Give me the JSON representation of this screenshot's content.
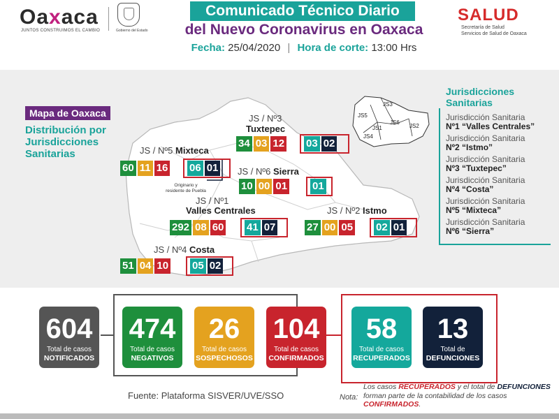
{
  "header": {
    "logo_text_1": "Oa",
    "logo_text_x": "x",
    "logo_text_2": "aca",
    "logo_tagline": "JUNTOS CONSTRUIMOS EL CAMBIO",
    "seal_caption": "Gobierno del Estado",
    "title_line1": "Comunicado Técnico Diario",
    "title_line2": "del Nuevo Coronavirus en Oaxaca",
    "fecha_label": "Fecha:",
    "fecha_value": "25/04/2020",
    "separator": "|",
    "hora_label": "Hora de corte:",
    "hora_value": "13:00 Hrs",
    "salud_logo": "SALUD",
    "salud_sub1": "Secretaría de Salud",
    "salud_sub2": "Servicios de Salud de Oaxaca"
  },
  "map": {
    "tag": "Mapa de Oaxaca",
    "subtitle": "Distribución por Jurisdicciones Sanitarias",
    "puebla_note": "Originario y residente de Puebla",
    "inset_labels": [
      "JS5",
      "JS3",
      "JS6",
      "JS1",
      "JS2",
      "JS4"
    ]
  },
  "jurisdictions": {
    "tuxtepec": {
      "prefix": "JS / Nº3",
      "name": "Tuxtepec",
      "negativos": "34",
      "sospechosos": "03",
      "confirmados": "12",
      "recuperados": "03",
      "defunciones": "02"
    },
    "mixteca": {
      "prefix": "JS / Nº5",
      "name": "Mixteca",
      "negativos": "60",
      "sospechosos": "11",
      "confirmados": "16",
      "recuperados": "06",
      "defunciones": "01"
    },
    "sierra": {
      "prefix": "JS / Nº6",
      "name": "Sierra",
      "negativos": "10",
      "sospechosos": "00",
      "confirmados": "01",
      "recuperados": "01"
    },
    "valles": {
      "prefix": "JS / Nº1",
      "name": "Valles Centrales",
      "negativos": "292",
      "sospechosos": "08",
      "confirmados": "60",
      "recuperados": "41",
      "defunciones": "07"
    },
    "istmo": {
      "prefix": "JS / Nº2",
      "name": "Istmo",
      "negativos": "27",
      "sospechosos": "00",
      "confirmados": "05",
      "recuperados": "02",
      "defunciones": "01"
    },
    "costa": {
      "prefix": "JS / Nº4",
      "name": "Costa",
      "negativos": "51",
      "sospechosos": "04",
      "confirmados": "10",
      "recuperados": "05",
      "defunciones": "02"
    }
  },
  "legend": {
    "title": "Jurisdicciones Sanitarias",
    "items": [
      {
        "prefix": "Jurisdicción Sanitaria",
        "name": "Nº1 “Valles Centrales”"
      },
      {
        "prefix": "Jurisdicción Sanitaria",
        "name": "Nº2 “Istmo”"
      },
      {
        "prefix": "Jurisdicción Sanitaria",
        "name": "Nº3 “Tuxtepec”"
      },
      {
        "prefix": "Jurisdicción Sanitaria",
        "name": "Nº4 “Costa”"
      },
      {
        "prefix": "Jurisdicción Sanitaria",
        "name": "Nº5 “Mixteca”"
      },
      {
        "prefix": "Jurisdicción Sanitaria",
        "name": "Nº6 “Sierra”"
      }
    ]
  },
  "summary": {
    "notificados": {
      "value": "604",
      "line1": "Total de casos",
      "line2": "NOTIFICADOS"
    },
    "negativos": {
      "value": "474",
      "line1": "Total de casos",
      "line2": "NEGATIVOS"
    },
    "sospechosos": {
      "value": "26",
      "line1": "Total de casos",
      "line2": "SOSPECHOSOS"
    },
    "confirmados": {
      "value": "104",
      "line1": "Total de casos",
      "line2": "CONFIRMADOS"
    },
    "recuperados": {
      "value": "58",
      "line1": "Total de casos",
      "line2": "RECUPERADOS"
    },
    "defunciones": {
      "value": "13",
      "line1": "Total de",
      "line2": "DEFUNCIONES"
    }
  },
  "footer": {
    "fuente": "Fuente: Plataforma SISVER/UVE/SSO",
    "nota_label": "Nota:",
    "nota_p1": "Los casos ",
    "nota_recuperados": "RECUPERADOS",
    "nota_p2": " y el total de ",
    "nota_defunciones": "DEFUNCIONES",
    "nota_p3": " forman parte de la contabilidad de los casos ",
    "nota_confirmados": "CONFIRMADOS",
    "nota_p4": "."
  },
  "colors": {
    "teal": "#14a89c",
    "purple": "#6a2a7e",
    "green": "#1e8f3c",
    "orange": "#e4a21f",
    "red": "#c8242d",
    "navy": "#12213a",
    "grey": "#555555"
  }
}
